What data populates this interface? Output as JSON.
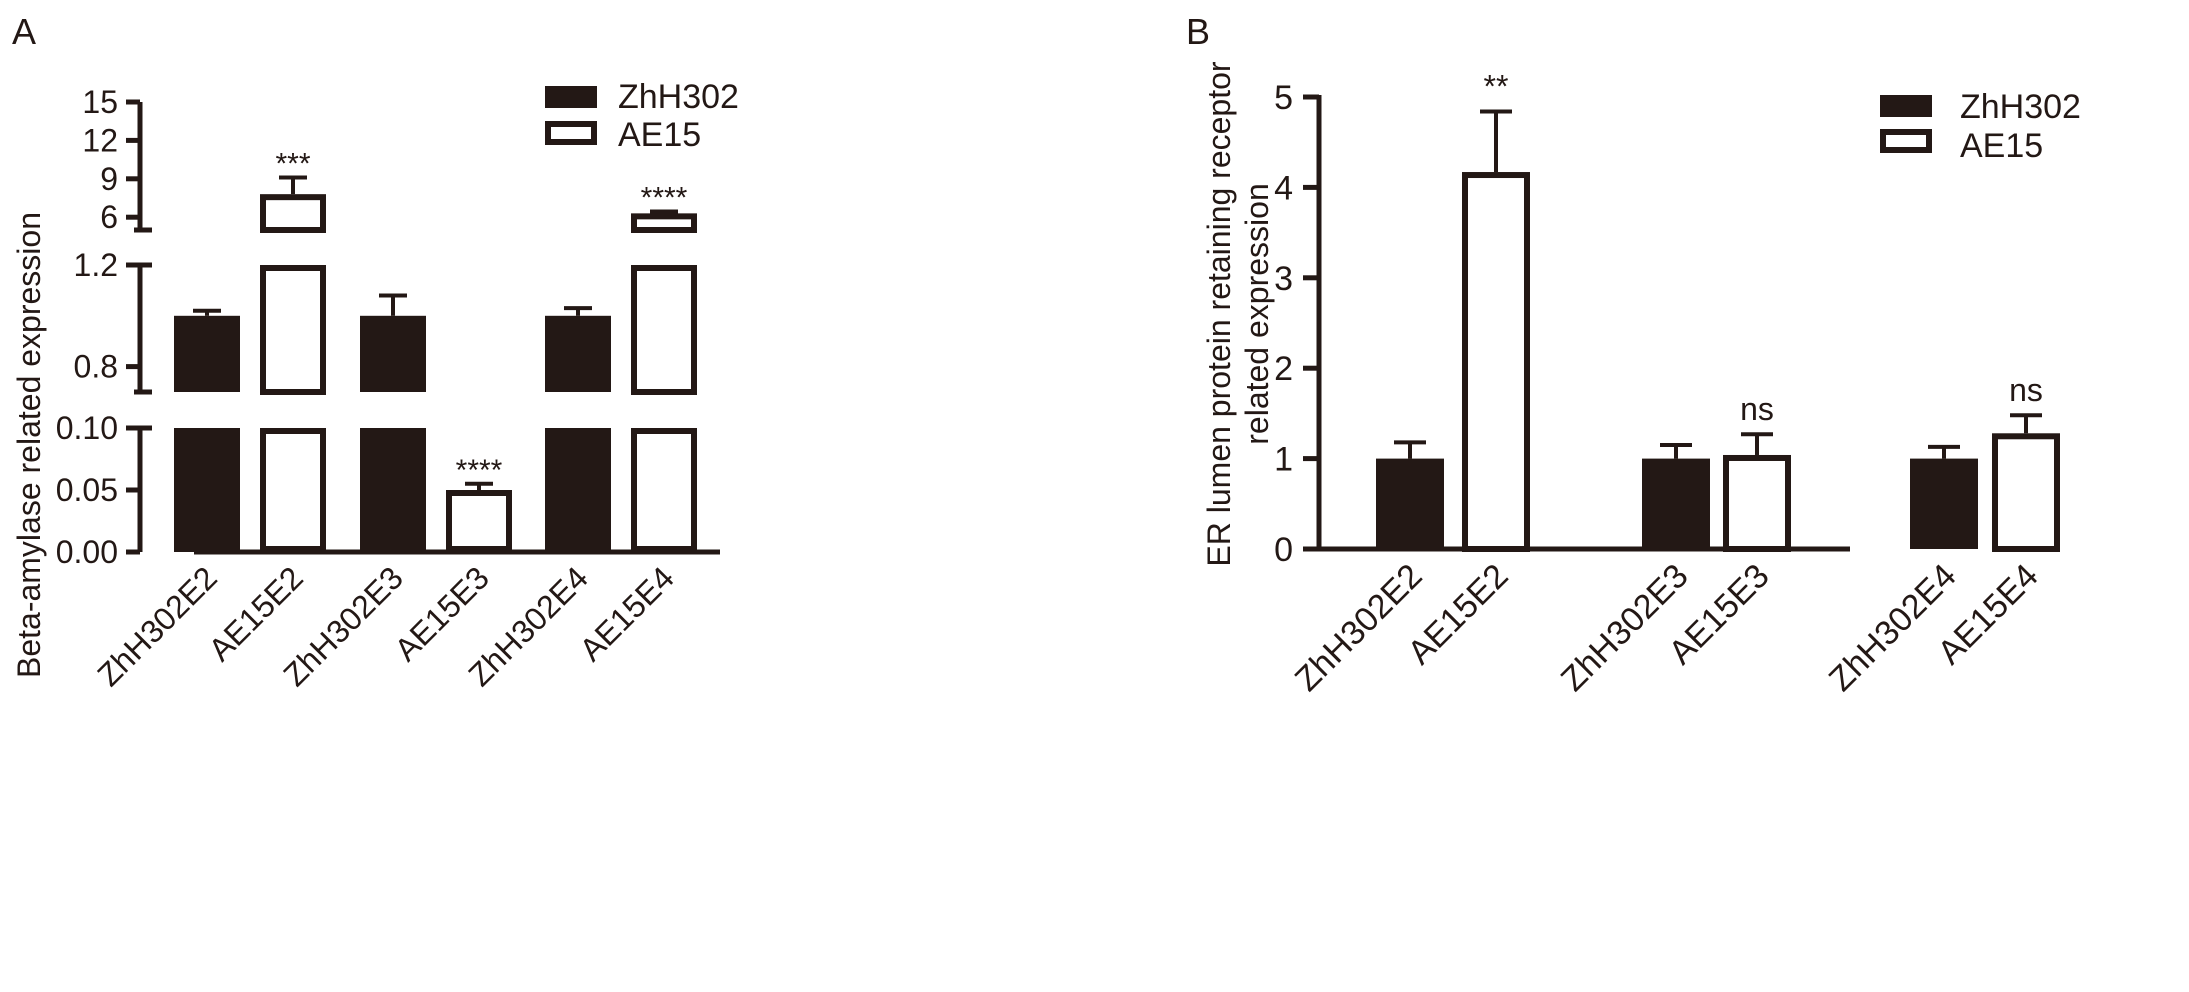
{
  "chart_data": [
    {
      "panel_label": "A",
      "type": "bar",
      "ylabel": "Beta-amylase related expression",
      "axis_segments": [
        {
          "range": [
            0,
            0.1
          ],
          "ticks": [
            "0.00",
            "0.05",
            "0.10"
          ],
          "tick_values": [
            0,
            0.05,
            0.1
          ]
        },
        {
          "range": [
            0.7,
            1.2
          ],
          "ticks": [
            "0.8",
            "1.2"
          ],
          "tick_values": [
            0.8,
            1.2
          ]
        },
        {
          "range": [
            5,
            15
          ],
          "ticks": [
            "6",
            "9",
            "12",
            "15"
          ],
          "tick_values": [
            6,
            9,
            12,
            15
          ]
        }
      ],
      "categories": [
        "ZhH302E2",
        "AE15E2",
        "ZhH302E3",
        "AE15E3",
        "ZhH302E4",
        "AE15E4"
      ],
      "series_of": [
        "ZhH302",
        "AE15",
        "ZhH302",
        "AE15",
        "ZhH302",
        "AE15"
      ],
      "values": [
        1.0,
        7.8,
        1.0,
        0.05,
        1.0,
        6.3
      ],
      "errors": [
        0.02,
        1.3,
        0.08,
        0.005,
        0.03,
        0.15
      ],
      "annotations": [
        "",
        "***",
        "",
        "****",
        "",
        "****"
      ],
      "legend": [
        {
          "name": "ZhH302",
          "style": "filled"
        },
        {
          "name": "AE15",
          "style": "open"
        }
      ]
    },
    {
      "panel_label": "B",
      "type": "bar",
      "ylabel_lines": [
        "ER lumen protein retaining receptor",
        "related expression"
      ],
      "ylim": [
        0,
        5
      ],
      "ticks": [
        "0",
        "1",
        "2",
        "3",
        "4",
        "5"
      ],
      "tick_values": [
        0,
        1,
        2,
        3,
        4,
        5
      ],
      "categories": [
        "ZhH302E2",
        "AE15E2",
        "ZhH302E3",
        "AE15E3",
        "ZhH302E4",
        "AE15E4"
      ],
      "series_of": [
        "ZhH302",
        "AE15",
        "ZhH302",
        "AE15",
        "ZhH302",
        "AE15"
      ],
      "values": [
        1.0,
        4.17,
        1.0,
        1.04,
        1.0,
        1.28
      ],
      "errors": [
        0.18,
        0.67,
        0.15,
        0.23,
        0.13,
        0.2
      ],
      "annotations": [
        "",
        "**",
        "",
        "ns",
        "",
        "ns"
      ],
      "legend": [
        {
          "name": "ZhH302",
          "style": "filled"
        },
        {
          "name": "AE15",
          "style": "open"
        }
      ]
    }
  ]
}
